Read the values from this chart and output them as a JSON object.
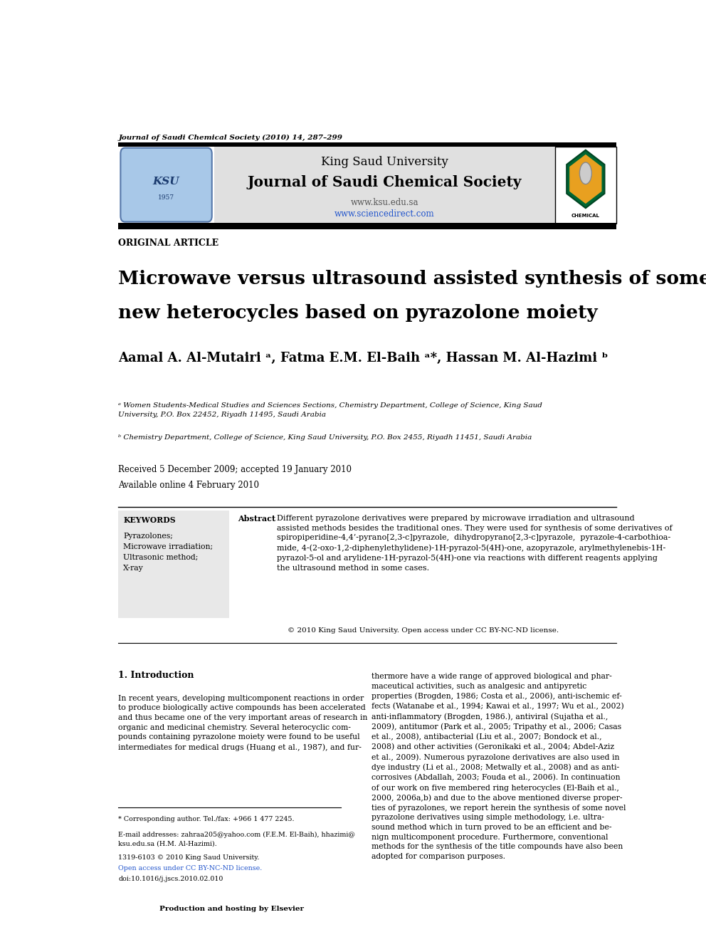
{
  "page_width": 9.92,
  "page_height": 13.23,
  "bg_color": "#ffffff",
  "journal_citation": "Journal of Saudi Chemical Society (2010) 14, 287–299",
  "university_name": "King Saud University",
  "journal_name": "Journal of Saudi Chemical Society",
  "journal_url1": "www.ksu.edu.sa",
  "journal_url2": "www.sciencedirect.com",
  "section_label": "ORIGINAL ARTICLE",
  "article_title_line1": "Microwave versus ultrasound assisted synthesis of some",
  "article_title_line2": "new heterocycles based on pyrazolone moiety",
  "authors": "Aamal A. Al-Mutairi ᵃ, Fatma E.M. El-Baih ᵃ*, Hassan M. Al-Hazimi ᵇ",
  "affil_a": "ᵃ Women Students-Medical Studies and Sciences Sections, Chemistry Department, College of Science, King Saud\nUniversity, P.O. Box 22452, Riyadh 11495, Saudi Arabia",
  "affil_b": "ᵇ Chemistry Department, College of Science, King Saud University, P.O. Box 2455, Riyadh 11451, Saudi Arabia",
  "received": "Received 5 December 2009; accepted 19 January 2010",
  "available": "Available online 4 February 2010",
  "keywords_title": "KEYWORDS",
  "keywords": "Pyrazolones;\nMicrowave irradiation;\nUltrasonic method;\nX-ray",
  "abstract_title": "Abstract   ",
  "abstract_text": "Different pyrazolone derivatives were prepared by microwave irradiation and ultrasound\nassisted methods besides the traditional ones. They were used for synthesis of some derivatives of\nspiropiperidine-4,4’-pyrano[2,3-c]pyrazole,  dihydropyrano[2,3-c]pyrazole,  pyrazole-4-carbothioa-\nmide, 4-(2-oxo-1,2-diphenylethylidene)-1H-pyrazol-5(4H)-one, azopyrazole, arylmethylenebis-1H-\npyrazol-5-ol and arylidene-1H-pyrazol-5(4H)-one via reactions with different reagents applying\nthe ultrasound method in some cases.",
  "copyright_text": "© 2010 King Saud University. Open access under CC BY-NC-ND license.",
  "intro_heading": "1. Introduction",
  "intro_col1": "In recent years, developing multicomponent reactions in order\nto produce biologically active compounds has been accelerated\nand thus became one of the very important areas of research in\norganic and medicinal chemistry. Several heterocyclic com-\npounds containing pyrazolone moiety were found to be useful\nintermediates for medical drugs (Huang et al., 1987), and fur-",
  "footnote_star": "* Corresponding author. Tel./fax: +966 1 477 2245.",
  "footnote_email": "E-mail addresses: zahraa205@yahoo.com (F.E.M. El-Baih), hhazimi@\nksu.edu.sa (H.M. Al-Hazimi).",
  "footnote_issn": "1319-6103 © 2010 King Saud University.",
  "footnote_oa": "Open access under CC BY-NC-ND license.",
  "footnote_doi": "doi:10.1016/j.jscs.2010.02.010",
  "intro_col2": "thermore have a wide range of approved biological and phar-\nmaceutical activities, such as analgesic and antipyretic\nproperties (Brogden, 1986; Costa et al., 2006), anti-ischemic ef-\nfects (Watanabe et al., 1994; Kawai et al., 1997; Wu et al., 2002)\nanti-inflammatory (Brogden, 1986.), antiviral (Sujatha et al.,\n2009), antitumor (Park et al., 2005; Tripathy et al., 2006; Casas\net al., 2008), antibacterial (Liu et al., 2007; Bondock et al.,\n2008) and other activities (Geronikaki et al., 2004; Abdel-Aziz\net al., 2009). Numerous pyrazolone derivatives are also used in\ndye industry (Li et al., 2008; Metwally et al., 2008) and as anti-\ncorrosives (Abdallah, 2003; Fouda et al., 2006). In continuation\nof our work on five membered ring heterocycles (El-Baih et al.,\n2000, 2006a,b) and due to the above mentioned diverse proper-\nties of pyrazolones, we report herein the synthesis of some novel\npyrazolone derivatives using simple methodology, i.e. ultra-\nsound method which in turn proved to be an efficient and be-\nnign multicomponent procedure. Furthermore, conventional\nmethods for the synthesis of the title compounds have also been\nadopted for comparison purposes.",
  "elsevier_text": "Production and hosting by Elsevier"
}
